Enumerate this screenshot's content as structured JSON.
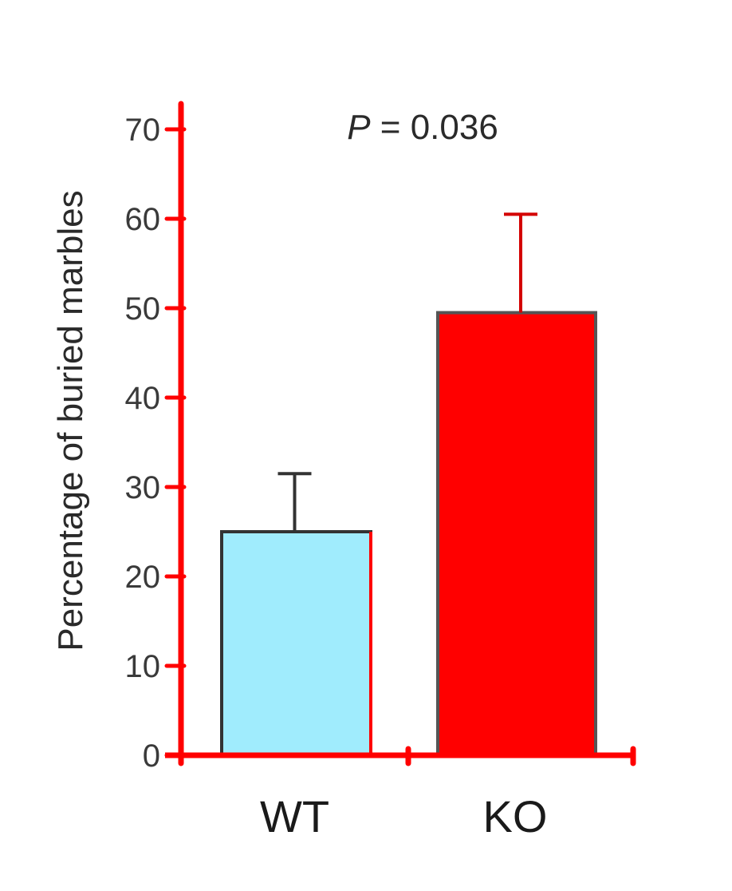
{
  "chart_data": {
    "type": "bar",
    "categories": [
      "WT",
      "KO"
    ],
    "values": [
      25,
      49.5
    ],
    "error_upper": [
      31.5,
      60.5
    ],
    "ylabel": "Percentage of buried marbles",
    "xlabel": "",
    "ylim": [
      0,
      70
    ],
    "yticks": [
      "0",
      "10",
      "20",
      "30",
      "40",
      "50",
      "60",
      "70"
    ],
    "annotation": {
      "italic": "P",
      "rest": " = 0.036"
    },
    "grid": false,
    "colors": {
      "axis": "#ff0000",
      "bars": [
        "#a0ecfd",
        "#ff0000"
      ],
      "bar_outline": [
        "#333333",
        "#555555"
      ],
      "error_bar": [
        "#333333",
        "#d40000"
      ]
    }
  }
}
